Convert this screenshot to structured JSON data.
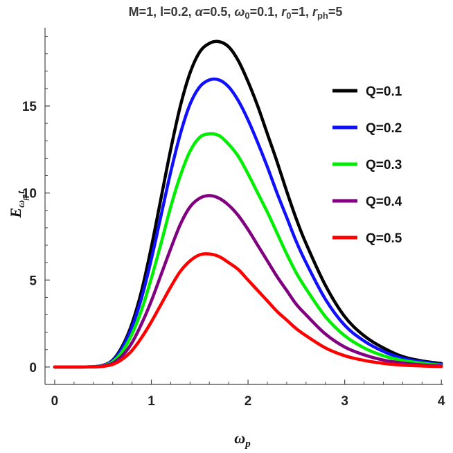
{
  "chart_data": {
    "type": "line",
    "title_parts": [
      "M=1, l=0.2, ",
      "α",
      "=0.5, ",
      "ω",
      "0",
      "=0.1, ",
      "r",
      "0",
      "=1, ",
      "r",
      "ph",
      "=5"
    ],
    "xlabel_parts": [
      "ω",
      "p"
    ],
    "ylabel_parts": [
      "E",
      "ω",
      "p",
      ",",
      "t"
    ],
    "xlim": [
      -0.1,
      4.02
    ],
    "ylim": [
      -1.0,
      19.5
    ],
    "xticks": [
      0,
      1,
      2,
      3,
      4
    ],
    "yticks": [
      0,
      5,
      10,
      15
    ],
    "x": [
      0,
      0.2,
      0.4,
      0.5,
      0.6,
      0.7,
      0.8,
      0.9,
      1.0,
      1.1,
      1.2,
      1.3,
      1.4,
      1.5,
      1.6,
      1.7,
      1.8,
      1.9,
      2.0,
      2.1,
      2.2,
      2.3,
      2.4,
      2.5,
      2.6,
      2.8,
      3.0,
      3.2,
      3.4,
      3.6,
      3.8,
      4.0
    ],
    "series": [
      {
        "name": "Q=0.1",
        "color": "#000000",
        "values": [
          0,
          0,
          0.02,
          0.1,
          0.4,
          1.2,
          2.5,
          4.4,
          6.9,
          9.7,
          12.5,
          15.0,
          16.9,
          18.1,
          18.6,
          18.7,
          18.4,
          17.6,
          16.4,
          15.0,
          13.4,
          11.8,
          10.1,
          8.5,
          7.1,
          4.7,
          2.9,
          1.8,
          1.1,
          0.6,
          0.35,
          0.2
        ]
      },
      {
        "name": "Q=0.2",
        "color": "#1010ff",
        "values": [
          0,
          0,
          0.02,
          0.1,
          0.37,
          1.1,
          2.3,
          4.0,
          6.2,
          8.7,
          11.2,
          13.4,
          15.1,
          16.1,
          16.5,
          16.5,
          16.1,
          15.3,
          14.2,
          12.9,
          11.5,
          10.0,
          8.6,
          7.2,
          6.0,
          3.9,
          2.4,
          1.5,
          0.9,
          0.5,
          0.3,
          0.15
        ]
      },
      {
        "name": "Q=0.3",
        "color": "#00ee00",
        "values": [
          0,
          0,
          0.02,
          0.08,
          0.3,
          0.9,
          1.9,
          3.3,
          5.1,
          7.1,
          9.2,
          11.0,
          12.4,
          13.2,
          13.4,
          13.3,
          12.8,
          12.1,
          11.1,
          10.0,
          8.9,
          7.7,
          6.5,
          5.4,
          4.5,
          2.9,
          1.8,
          1.1,
          0.65,
          0.38,
          0.22,
          0.1
        ]
      },
      {
        "name": "Q=0.4",
        "color": "#800080",
        "values": [
          0,
          0,
          0.01,
          0.06,
          0.22,
          0.65,
          1.4,
          2.5,
          3.8,
          5.3,
          6.8,
          8.2,
          9.2,
          9.7,
          9.85,
          9.7,
          9.3,
          8.7,
          7.9,
          7.0,
          6.1,
          5.2,
          4.4,
          3.6,
          3.0,
          1.9,
          1.15,
          0.7,
          0.4,
          0.23,
          0.12,
          0.06
        ]
      },
      {
        "name": "Q=0.5",
        "color": "#ff0000",
        "values": [
          0,
          0,
          0.01,
          0.04,
          0.15,
          0.45,
          0.95,
          1.7,
          2.6,
          3.6,
          4.6,
          5.5,
          6.1,
          6.45,
          6.5,
          6.35,
          6.0,
          5.6,
          5.0,
          4.4,
          3.8,
          3.2,
          2.7,
          2.2,
          1.8,
          1.1,
          0.65,
          0.38,
          0.21,
          0.11,
          0.06,
          0.03
        ]
      }
    ],
    "grid": false,
    "legend_position": "top-right"
  }
}
